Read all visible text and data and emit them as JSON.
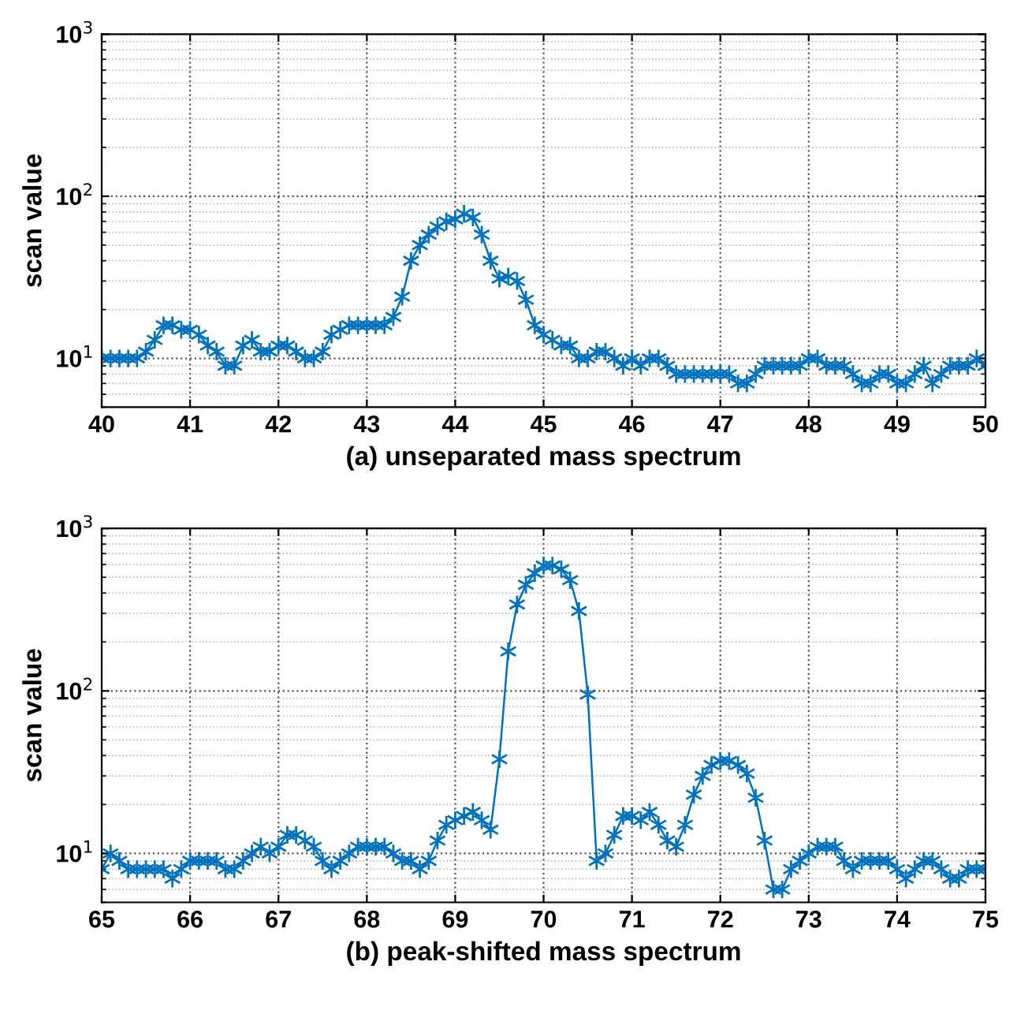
{
  "chart_data": [
    {
      "type": "line",
      "xlabel": "(a) unseparated mass spectrum",
      "ylabel": "scan value",
      "log": "y",
      "grid": true,
      "marker": "cross",
      "line_style": "solid",
      "xlim": [
        40,
        50
      ],
      "xticks": [
        40,
        41,
        42,
        43,
        44,
        45,
        46,
        47,
        48,
        49,
        50
      ],
      "ylim": [
        5,
        1000
      ],
      "yticks": [
        {
          "value": 10,
          "label": "10$^{1}$"
        },
        {
          "value": 100,
          "label": "10$^{2}$"
        },
        {
          "value": 1000,
          "label": "10$^{3}$"
        }
      ],
      "series": [
        {
          "color": "#0072bd",
          "x": [
            40.0,
            40.1,
            40.2,
            40.3,
            40.4,
            40.5,
            40.6,
            40.7,
            40.8,
            40.9,
            41.0,
            41.1,
            41.2,
            41.3,
            41.4,
            41.5,
            41.6,
            41.7,
            41.8,
            41.9,
            42.0,
            42.1,
            42.2,
            42.3,
            42.4,
            42.5,
            42.6,
            42.7,
            42.8,
            42.9,
            43.0,
            43.1,
            43.2,
            43.3,
            43.4,
            43.5,
            43.6,
            43.7,
            43.8,
            43.9,
            44.0,
            44.1,
            44.2,
            44.3,
            44.4,
            44.5,
            44.6,
            44.7,
            44.8,
            44.9,
            45.0,
            45.1,
            45.2,
            45.3,
            45.4,
            45.5,
            45.6,
            45.7,
            45.8,
            45.9,
            46.0,
            46.1,
            46.2,
            46.3,
            46.4,
            46.5,
            46.6,
            46.7,
            46.8,
            46.9,
            47.0,
            47.1,
            47.2,
            47.3,
            47.4,
            47.5,
            47.6,
            47.7,
            47.8,
            47.9,
            48.0,
            48.1,
            48.2,
            48.3,
            48.4,
            48.5,
            48.6,
            48.7,
            48.8,
            48.9,
            49.0,
            49.1,
            49.2,
            49.3,
            49.4,
            49.5,
            49.6,
            49.7,
            49.8,
            49.9,
            50.0
          ],
          "values": [
            10,
            10,
            10,
            10,
            10,
            11,
            13,
            16,
            16,
            15,
            15,
            14,
            12,
            11,
            9,
            9,
            12,
            13,
            11,
            11,
            12,
            12,
            11,
            10,
            10,
            11,
            14,
            15,
            16,
            16,
            16,
            16,
            16,
            18,
            24,
            40,
            50,
            58,
            65,
            70,
            72,
            78,
            74,
            58,
            40,
            31,
            32,
            30,
            23,
            16,
            14,
            13,
            12,
            12,
            10,
            10,
            11,
            11,
            10,
            9,
            10,
            9,
            10,
            10,
            9,
            8,
            8,
            8,
            8,
            8,
            8,
            8,
            7,
            7,
            8,
            9,
            9,
            9,
            9,
            9,
            10,
            10,
            9,
            9,
            9,
            8,
            7,
            7,
            8,
            8,
            7,
            7,
            8,
            9,
            7,
            8,
            9,
            9,
            9,
            10,
            9
          ]
        }
      ]
    },
    {
      "type": "line",
      "xlabel": "(b) peak-shifted mass spectrum",
      "ylabel": "scan value",
      "log": "y",
      "grid": true,
      "marker": "cross",
      "line_style": "solid",
      "xlim": [
        65,
        75
      ],
      "xticks": [
        65,
        66,
        67,
        68,
        69,
        70,
        71,
        72,
        73,
        74,
        75
      ],
      "ylim": [
        5,
        1000
      ],
      "yticks": [
        {
          "value": 10,
          "label": "10$^{1}$"
        },
        {
          "value": 100,
          "label": "10$^{2}$"
        },
        {
          "value": 1000,
          "label": "10$^{3}$"
        }
      ],
      "series": [
        {
          "color": "#0072bd",
          "x": [
            65.0,
            65.1,
            65.2,
            65.3,
            65.4,
            65.5,
            65.6,
            65.7,
            65.8,
            65.9,
            66.0,
            66.1,
            66.2,
            66.3,
            66.4,
            66.5,
            66.6,
            66.7,
            66.8,
            66.9,
            67.0,
            67.1,
            67.2,
            67.3,
            67.4,
            67.5,
            67.6,
            67.7,
            67.8,
            67.9,
            68.0,
            68.1,
            68.2,
            68.3,
            68.4,
            68.5,
            68.6,
            68.7,
            68.8,
            68.9,
            69.0,
            69.1,
            69.2,
            69.3,
            69.4,
            69.5,
            69.6,
            69.7,
            69.8,
            69.9,
            70.0,
            70.1,
            70.2,
            70.3,
            70.4,
            70.5,
            70.6,
            70.7,
            70.8,
            70.9,
            71.0,
            71.1,
            71.2,
            71.3,
            71.4,
            71.5,
            71.6,
            71.7,
            71.8,
            71.9,
            72.0,
            72.1,
            72.2,
            72.3,
            72.4,
            72.5,
            72.6,
            72.7,
            72.8,
            72.9,
            73.0,
            73.1,
            73.2,
            73.3,
            73.4,
            73.5,
            73.6,
            73.7,
            73.8,
            73.9,
            74.0,
            74.1,
            74.2,
            74.3,
            74.4,
            74.5,
            74.6,
            74.7,
            74.8,
            74.9,
            75.0
          ],
          "values": [
            8,
            10,
            9,
            8,
            8,
            8,
            8,
            8,
            7,
            8,
            9,
            9,
            9,
            9,
            8,
            8,
            9,
            10,
            11,
            10,
            11,
            13,
            13,
            12,
            11,
            9,
            8,
            9,
            10,
            11,
            11,
            11,
            11,
            10,
            9,
            9,
            8,
            9,
            12,
            15,
            16,
            17,
            18,
            16,
            14,
            38,
            175,
            340,
            450,
            530,
            590,
            590,
            560,
            480,
            310,
            95,
            9,
            10,
            13,
            17,
            17,
            16,
            18,
            15,
            12,
            11,
            15,
            23,
            30,
            35,
            37,
            37,
            35,
            31,
            22,
            12,
            6,
            6,
            8,
            9,
            10,
            11,
            11,
            11,
            9,
            8,
            9,
            9,
            9,
            9,
            8,
            7,
            8,
            9,
            9,
            8,
            7,
            7,
            8,
            8,
            8
          ]
        }
      ]
    }
  ]
}
